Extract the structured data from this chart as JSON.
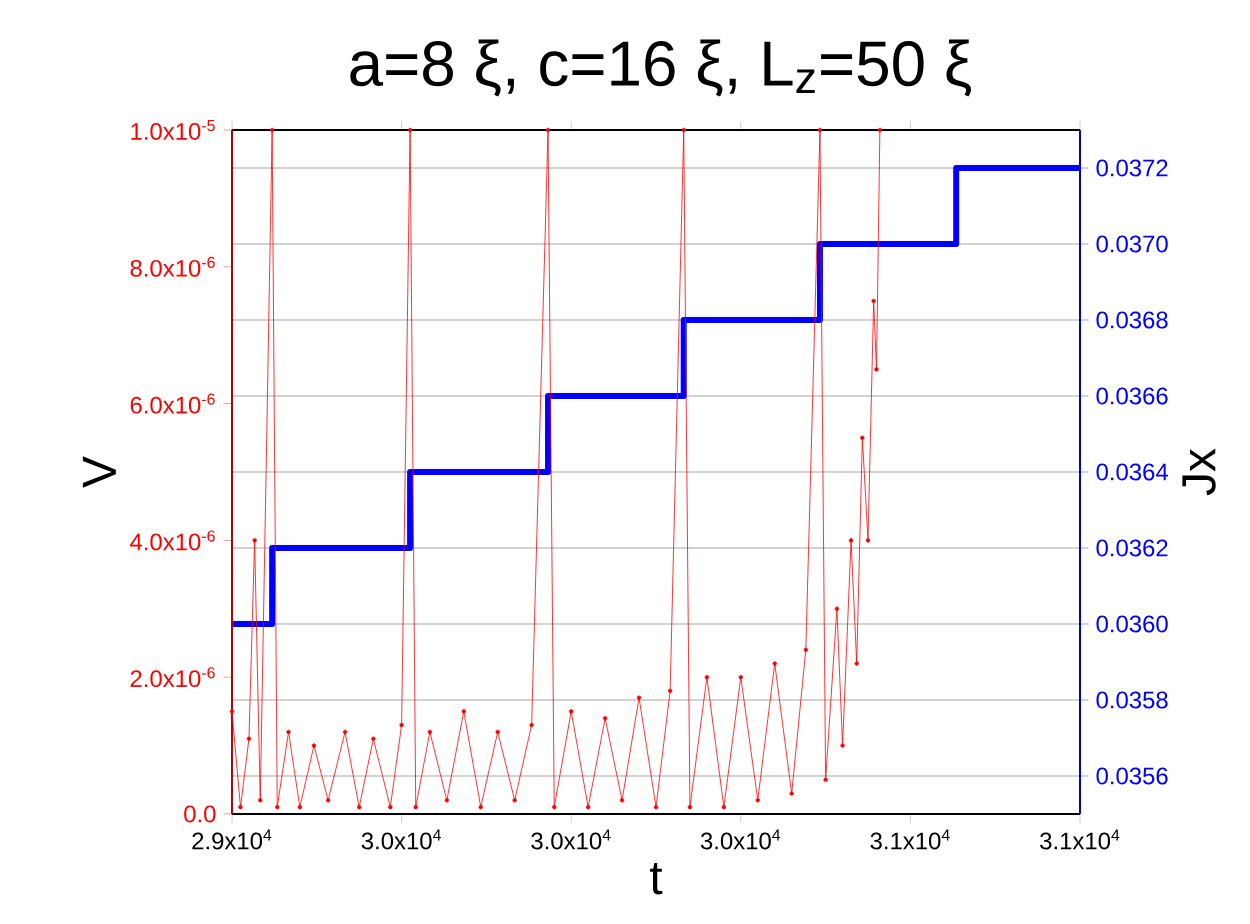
{
  "chart_data": {
    "type": "line",
    "title": "a=8 ξ, c=16 ξ, L$_{z}$=50 ξ",
    "xlabel": "t",
    "ylabel": "V",
    "y2label": "Jx",
    "xlim": [
      29400,
      30900
    ],
    "xticks": [
      {
        "value": 29400,
        "label": "2.9x10$^{4}$"
      },
      {
        "value": 29700,
        "label": "3.0x10$^{4}$"
      },
      {
        "value": 30000,
        "label": "3.0x10$^{4}$"
      },
      {
        "value": 30300,
        "label": "3.0x10$^{4}$"
      },
      {
        "value": 30600,
        "label": "3.1x10$^{4}$"
      },
      {
        "value": 30900,
        "label": "3.1x10$^{4}$"
      }
    ],
    "ylim": [
      0,
      1e-05
    ],
    "yticks": [
      {
        "value": 0,
        "label": "0.0"
      },
      {
        "value": 2e-06,
        "label": "2.0x10$^{-6}$"
      },
      {
        "value": 4e-06,
        "label": "4.0x10$^{-6}$"
      },
      {
        "value": 6e-06,
        "label": "6.0x10$^{-6}$"
      },
      {
        "value": 8e-06,
        "label": "8.0x10$^{-6}$"
      },
      {
        "value": 1e-05,
        "label": "1.0x10$^{-5}$"
      }
    ],
    "y2lim": [
      0.0355,
      0.0373
    ],
    "y2ticks": [
      0.0356,
      0.0358,
      {
        "value": 0.036,
        "label": "0.0360"
      },
      0.0362,
      0.0364,
      0.0366,
      0.0368,
      {
        "value": 0.037,
        "label": "0.0370"
      },
      0.0372
    ],
    "grid": "y2",
    "line_style": "solid",
    "series": [
      {
        "color": "#0000ff",
        "type": "step",
        "axis": "y2",
        "marker": "none",
        "x": [
          29400,
          29471,
          29715,
          29959,
          30199,
          30440,
          30681,
          30900
        ],
        "values": [
          0.036,
          0.0362,
          0.0364,
          0.0366,
          0.0368,
          0.037,
          0.0372,
          0.0372
        ]
      },
      {
        "color": "#ff0000",
        "axis": "y",
        "marker": "circle",
        "x": [
          29400,
          29415,
          29430,
          29440,
          29450,
          29471,
          29480,
          29500,
          29520,
          29545,
          29570,
          29600,
          29625,
          29650,
          29680,
          29700,
          29715,
          29725,
          29750,
          29780,
          29810,
          29840,
          29870,
          29900,
          29930,
          29959,
          29970,
          30000,
          30030,
          30060,
          30090,
          30120,
          30150,
          30175,
          30199,
          30210,
          30240,
          30270,
          30300,
          30330,
          30360,
          30390,
          30415,
          30440,
          30450,
          30470,
          30480,
          30495,
          30505,
          30515,
          30525,
          30535,
          30540,
          30546
        ],
        "values": [
          1.5e-06,
          1e-07,
          1.1e-06,
          4e-06,
          2e-07,
          1e-05,
          1e-07,
          1.2e-06,
          1e-07,
          1e-06,
          2e-07,
          1.2e-06,
          1e-07,
          1.1e-06,
          1e-07,
          1.3e-06,
          1e-05,
          1e-07,
          1.2e-06,
          2e-07,
          1.5e-06,
          1e-07,
          1.2e-06,
          2e-07,
          1.3e-06,
          1e-05,
          1e-07,
          1.5e-06,
          1e-07,
          1.4e-06,
          2e-07,
          1.7e-06,
          1e-07,
          1.8e-06,
          1e-05,
          1e-07,
          2e-06,
          1e-07,
          2e-06,
          2e-07,
          2.2e-06,
          3e-07,
          2.4e-06,
          1e-05,
          5e-07,
          3e-06,
          1e-06,
          4e-06,
          2.2e-06,
          5.5e-06,
          4e-06,
          7.5e-06,
          6.5e-06,
          1e-05
        ]
      }
    ]
  }
}
